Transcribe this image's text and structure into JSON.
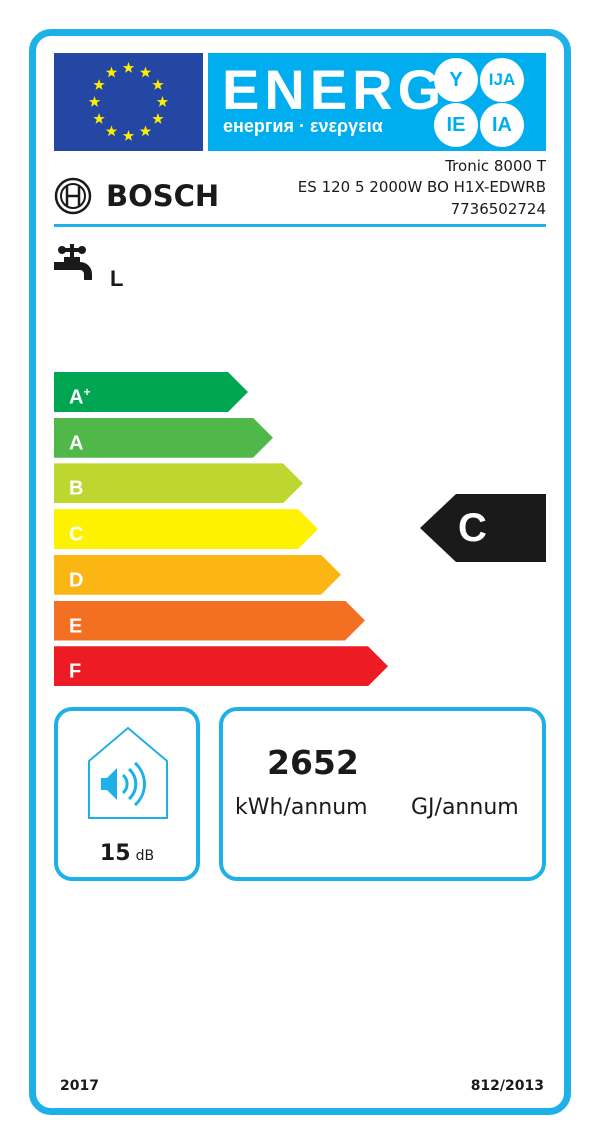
{
  "header": {
    "title": "ENERG",
    "subtitle": "енергия · ενεργεια",
    "suffixes": [
      "Y",
      "IJA",
      "IE",
      "IA"
    ]
  },
  "brand": "BOSCH",
  "model": {
    "name": "Tronic 8000 T",
    "code": "ES 120 5 2000W BO H1X-EDWRB",
    "number": "7736502724"
  },
  "load_profile": "L",
  "scale": [
    {
      "label": "A",
      "sup": "+",
      "color": "#00a651"
    },
    {
      "label": "A",
      "sup": "",
      "color": "#50b848"
    },
    {
      "label": "B",
      "sup": "",
      "color": "#bed630"
    },
    {
      "label": "C",
      "sup": "",
      "color": "#fff200"
    },
    {
      "label": "D",
      "sup": "",
      "color": "#fcb614"
    },
    {
      "label": "E",
      "sup": "",
      "color": "#f36f21"
    },
    {
      "label": "F",
      "sup": "",
      "color": "#ed1c24"
    }
  ],
  "rating": "C",
  "noise": {
    "value": "15",
    "unit": "dB"
  },
  "consumption": {
    "value": "2652",
    "unit_kwh": "kWh/annum",
    "unit_gj": "GJ/annum"
  },
  "footer": {
    "year": "2017",
    "regulation": "812/2013"
  },
  "colors": {
    "accent": "#1fb0e8",
    "eu_blue": "#2447a3"
  }
}
